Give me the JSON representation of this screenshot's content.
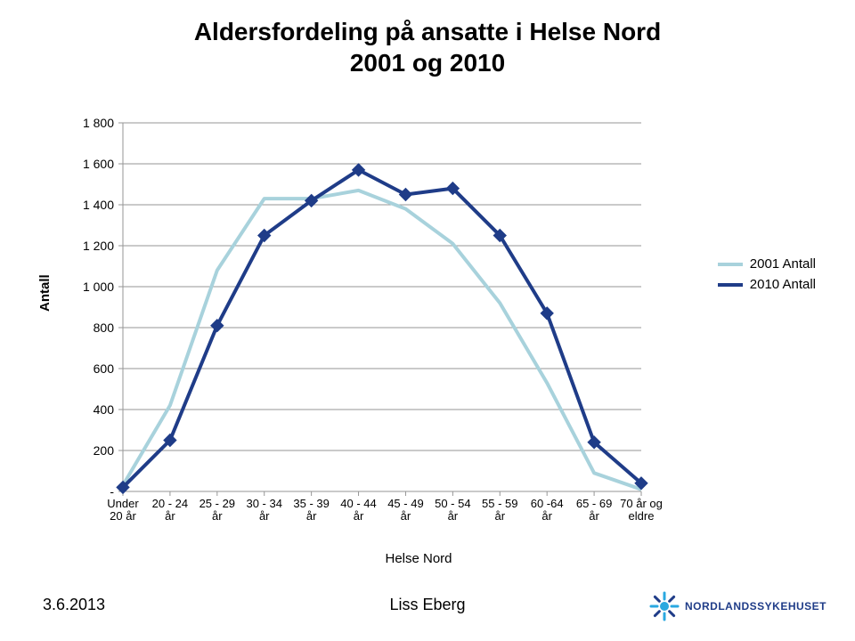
{
  "title_line1": "Aldersfordeling på ansatte i Helse Nord",
  "title_line2": "2001 og 2010",
  "chart": {
    "type": "line",
    "ylabel": "Antall",
    "xlabel": "Helse Nord",
    "ylim": [
      0,
      1800
    ],
    "ytick_step": 200,
    "ytick_labels": [
      "-",
      "200",
      "400",
      "600",
      "800",
      "1 000",
      "1 200",
      "1 400",
      "1 600",
      "1 800"
    ],
    "categories": [
      "Under\n20 år",
      "20 - 24\når",
      "25 - 29\når",
      "30 - 34\når",
      "35 - 39\når",
      "40 - 44\når",
      "45 - 49\når",
      "50 - 54\når",
      "55 - 59\når",
      "60 -64\når",
      "65 - 69\når",
      "70 år og\neldre"
    ],
    "series": [
      {
        "name": "2001 Antall",
        "color": "#a8d2dc",
        "line_width": 4,
        "marker": "none",
        "values": [
          30,
          420,
          1080,
          1430,
          1430,
          1470,
          1380,
          1210,
          920,
          530,
          90,
          10
        ]
      },
      {
        "name": "2010 Antall",
        "color": "#1f3c88",
        "line_width": 4,
        "marker": "diamond",
        "marker_size": 7,
        "values": [
          20,
          250,
          810,
          1250,
          1420,
          1570,
          1450,
          1480,
          1250,
          870,
          240,
          40
        ]
      }
    ],
    "background_color": "#ffffff",
    "grid_color": "#969696",
    "axis_color": "#969696"
  },
  "legend": {
    "items": [
      {
        "label": "2001 Antall",
        "color": "#a8d2dc",
        "width": 4
      },
      {
        "label": "2010 Antall",
        "color": "#1f3c88",
        "width": 4
      }
    ]
  },
  "footer": {
    "date": "3.6.2013",
    "author": "Liss Eberg",
    "logo_text": "NORDLANDSSYKEHUSET",
    "logo_color": "#1f3c88",
    "logo_accent": "#2aa8e0"
  }
}
